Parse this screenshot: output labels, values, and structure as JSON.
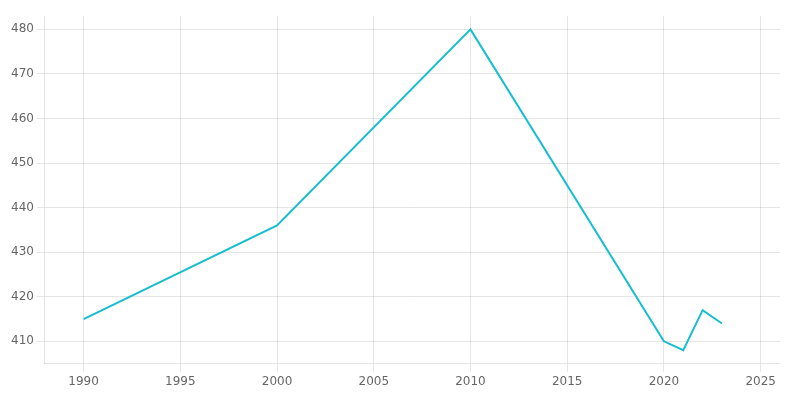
{
  "chart_data": {
    "type": "line",
    "x": [
      1990,
      2000,
      2010,
      2020,
      2021,
      2022,
      2023
    ],
    "values": [
      415,
      436,
      480,
      410,
      408,
      417,
      414
    ],
    "color": "#17BECF",
    "xlim": [
      1988,
      2026
    ],
    "ylim": [
      405,
      483
    ],
    "xticks": [
      1990,
      1995,
      2000,
      2005,
      2010,
      2015,
      2020,
      2025
    ],
    "yticks": [
      410,
      420,
      430,
      440,
      450,
      460,
      470,
      480
    ],
    "grid": true
  }
}
